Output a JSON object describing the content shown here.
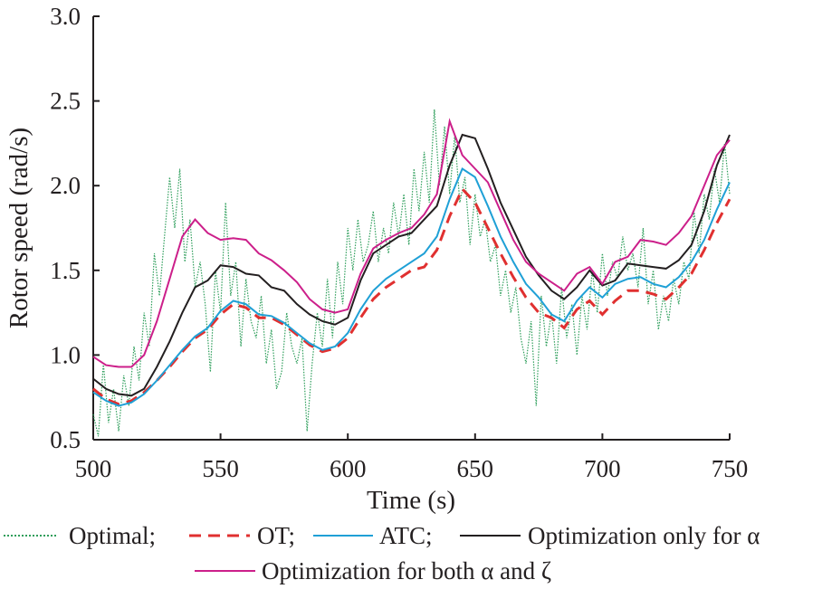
{
  "chart_data": {
    "type": "line",
    "xlabel": "Time (s)",
    "ylabel": "Rotor speed (rad/s)",
    "xlim": [
      500,
      750
    ],
    "ylim": [
      0.5,
      3.0
    ],
    "xticks": [
      "500",
      "550",
      "600",
      "650",
      "700",
      "750"
    ],
    "yticks": [
      "0.5",
      "1.0",
      "1.5",
      "2.0",
      "2.5",
      "3.0"
    ],
    "grid": false,
    "legend_position": "bottom",
    "legend": {
      "optimal": "Optimal;",
      "ot": "OT;",
      "atc": "ATC;",
      "alpha": "Optimization only for α",
      "both": "Optimization for both α and ζ"
    },
    "series": [
      {
        "name": "Optimal",
        "color": "#2e9e5b",
        "style": "dotted",
        "x": [
          500,
          502,
          504,
          506,
          508,
          510,
          512,
          514,
          516,
          518,
          520,
          522,
          524,
          526,
          528,
          530,
          532,
          534,
          536,
          538,
          540,
          542,
          544,
          546,
          548,
          550,
          552,
          554,
          556,
          558,
          560,
          562,
          564,
          566,
          568,
          570,
          572,
          574,
          576,
          578,
          580,
          582,
          584,
          586,
          588,
          590,
          592,
          594,
          596,
          598,
          600,
          602,
          604,
          606,
          608,
          610,
          612,
          614,
          616,
          618,
          620,
          622,
          624,
          626,
          628,
          630,
          632,
          634,
          636,
          638,
          640,
          642,
          644,
          646,
          648,
          650,
          652,
          654,
          656,
          658,
          660,
          662,
          664,
          666,
          668,
          670,
          672,
          674,
          676,
          678,
          680,
          682,
          684,
          686,
          688,
          690,
          692,
          694,
          696,
          698,
          700,
          702,
          704,
          706,
          708,
          710,
          712,
          714,
          716,
          718,
          720,
          722,
          724,
          726,
          728,
          730,
          732,
          734,
          736,
          738,
          740,
          742,
          744,
          746,
          748,
          750
        ],
        "y": [
          0.65,
          0.52,
          0.95,
          0.6,
          0.8,
          0.55,
          0.88,
          0.7,
          1.05,
          0.85,
          1.25,
          1.05,
          1.6,
          1.35,
          1.7,
          2.05,
          1.75,
          2.1,
          1.55,
          1.8,
          1.4,
          1.55,
          1.3,
          0.9,
          1.5,
          1.25,
          1.9,
          1.35,
          1.55,
          1.05,
          1.45,
          1.2,
          1.1,
          1.35,
          0.95,
          1.15,
          0.8,
          0.9,
          1.25,
          1.05,
          0.95,
          1.1,
          0.55,
          0.95,
          1.25,
          1.05,
          1.45,
          1.1,
          1.55,
          1.3,
          1.75,
          1.5,
          1.8,
          1.55,
          1.65,
          1.85,
          1.55,
          1.75,
          1.6,
          1.9,
          1.7,
          1.95,
          1.65,
          2.1,
          1.85,
          2.2,
          1.9,
          2.45,
          2.0,
          2.35,
          1.95,
          2.3,
          1.9,
          2.05,
          1.65,
          1.95,
          1.7,
          1.8,
          1.55,
          1.65,
          1.35,
          1.5,
          1.25,
          1.4,
          1.1,
          0.95,
          1.2,
          0.7,
          1.35,
          1.05,
          1.25,
          0.95,
          1.4,
          1.1,
          1.3,
          1.0,
          1.35,
          1.15,
          1.5,
          1.25,
          1.6,
          1.35,
          1.55,
          1.45,
          1.7,
          1.5,
          1.6,
          1.4,
          1.75,
          1.3,
          1.5,
          1.15,
          1.35,
          1.2,
          1.45,
          1.3,
          1.55,
          1.45,
          1.85,
          1.6,
          1.95,
          1.8,
          2.1,
          1.9,
          2.25,
          1.95
        ]
      },
      {
        "name": "OT",
        "color": "#e03030",
        "style": "dashed",
        "x": [
          500,
          505,
          510,
          515,
          520,
          525,
          530,
          535,
          540,
          545,
          550,
          555,
          560,
          565,
          570,
          575,
          580,
          585,
          590,
          595,
          600,
          605,
          610,
          615,
          620,
          625,
          630,
          635,
          640,
          645,
          650,
          655,
          660,
          665,
          670,
          675,
          680,
          685,
          690,
          695,
          700,
          705,
          710,
          715,
          720,
          725,
          730,
          735,
          740,
          745,
          750
        ],
        "y": [
          0.8,
          0.74,
          0.71,
          0.73,
          0.78,
          0.85,
          0.93,
          1.02,
          1.1,
          1.15,
          1.24,
          1.3,
          1.28,
          1.22,
          1.22,
          1.18,
          1.12,
          1.06,
          1.02,
          1.04,
          1.1,
          1.22,
          1.33,
          1.4,
          1.45,
          1.5,
          1.52,
          1.62,
          1.82,
          1.98,
          1.9,
          1.75,
          1.6,
          1.46,
          1.34,
          1.25,
          1.22,
          1.16,
          1.27,
          1.32,
          1.24,
          1.32,
          1.38,
          1.38,
          1.36,
          1.33,
          1.4,
          1.48,
          1.62,
          1.78,
          1.92
        ]
      },
      {
        "name": "ATC",
        "color": "#1fa0d6",
        "style": "solid",
        "x": [
          500,
          505,
          510,
          515,
          520,
          525,
          530,
          535,
          540,
          545,
          550,
          555,
          560,
          565,
          570,
          575,
          580,
          585,
          590,
          595,
          600,
          605,
          610,
          615,
          620,
          625,
          630,
          635,
          640,
          645,
          650,
          655,
          660,
          665,
          670,
          675,
          680,
          685,
          690,
          695,
          700,
          705,
          710,
          715,
          720,
          725,
          730,
          735,
          740,
          745,
          750
        ],
        "y": [
          0.78,
          0.73,
          0.7,
          0.72,
          0.77,
          0.85,
          0.94,
          1.03,
          1.11,
          1.16,
          1.26,
          1.32,
          1.3,
          1.24,
          1.23,
          1.19,
          1.13,
          1.07,
          1.03,
          1.05,
          1.13,
          1.27,
          1.38,
          1.45,
          1.5,
          1.55,
          1.6,
          1.7,
          1.92,
          2.1,
          2.05,
          1.88,
          1.7,
          1.55,
          1.42,
          1.34,
          1.24,
          1.2,
          1.32,
          1.4,
          1.34,
          1.42,
          1.45,
          1.46,
          1.42,
          1.4,
          1.46,
          1.55,
          1.68,
          1.86,
          2.02
        ]
      },
      {
        "name": "Optimization only for α",
        "color": "#231f20",
        "style": "solid",
        "x": [
          500,
          505,
          510,
          515,
          520,
          525,
          530,
          535,
          540,
          545,
          550,
          555,
          560,
          565,
          570,
          575,
          580,
          585,
          590,
          595,
          600,
          605,
          610,
          615,
          620,
          625,
          630,
          635,
          640,
          645,
          650,
          655,
          660,
          665,
          670,
          675,
          680,
          685,
          690,
          695,
          700,
          705,
          710,
          715,
          720,
          725,
          730,
          735,
          740,
          745,
          750
        ],
        "y": [
          0.86,
          0.8,
          0.77,
          0.76,
          0.8,
          0.93,
          1.08,
          1.25,
          1.4,
          1.44,
          1.53,
          1.52,
          1.48,
          1.47,
          1.4,
          1.38,
          1.3,
          1.24,
          1.2,
          1.18,
          1.22,
          1.44,
          1.6,
          1.65,
          1.7,
          1.72,
          1.8,
          1.88,
          2.12,
          2.3,
          2.28,
          2.1,
          1.9,
          1.74,
          1.58,
          1.47,
          1.38,
          1.33,
          1.4,
          1.5,
          1.41,
          1.44,
          1.54,
          1.53,
          1.52,
          1.51,
          1.56,
          1.65,
          1.85,
          2.12,
          2.3
        ]
      },
      {
        "name": "Optimization for both α and ζ",
        "color": "#cc1f8a",
        "style": "solid",
        "x": [
          500,
          505,
          510,
          515,
          520,
          525,
          530,
          535,
          540,
          545,
          550,
          555,
          560,
          565,
          570,
          575,
          580,
          585,
          590,
          595,
          600,
          605,
          610,
          615,
          620,
          625,
          630,
          635,
          640,
          645,
          650,
          655,
          660,
          665,
          670,
          675,
          680,
          685,
          690,
          695,
          700,
          705,
          710,
          715,
          720,
          725,
          730,
          735,
          740,
          745,
          750
        ],
        "y": [
          0.99,
          0.94,
          0.93,
          0.93,
          1.0,
          1.2,
          1.45,
          1.7,
          1.8,
          1.72,
          1.68,
          1.69,
          1.68,
          1.6,
          1.56,
          1.5,
          1.43,
          1.33,
          1.27,
          1.25,
          1.27,
          1.48,
          1.63,
          1.68,
          1.72,
          1.75,
          1.83,
          1.95,
          2.38,
          2.18,
          2.1,
          2.02,
          1.85,
          1.68,
          1.55,
          1.48,
          1.43,
          1.38,
          1.48,
          1.52,
          1.42,
          1.55,
          1.58,
          1.68,
          1.67,
          1.65,
          1.72,
          1.82,
          2.0,
          2.18,
          2.27
        ]
      }
    ]
  }
}
